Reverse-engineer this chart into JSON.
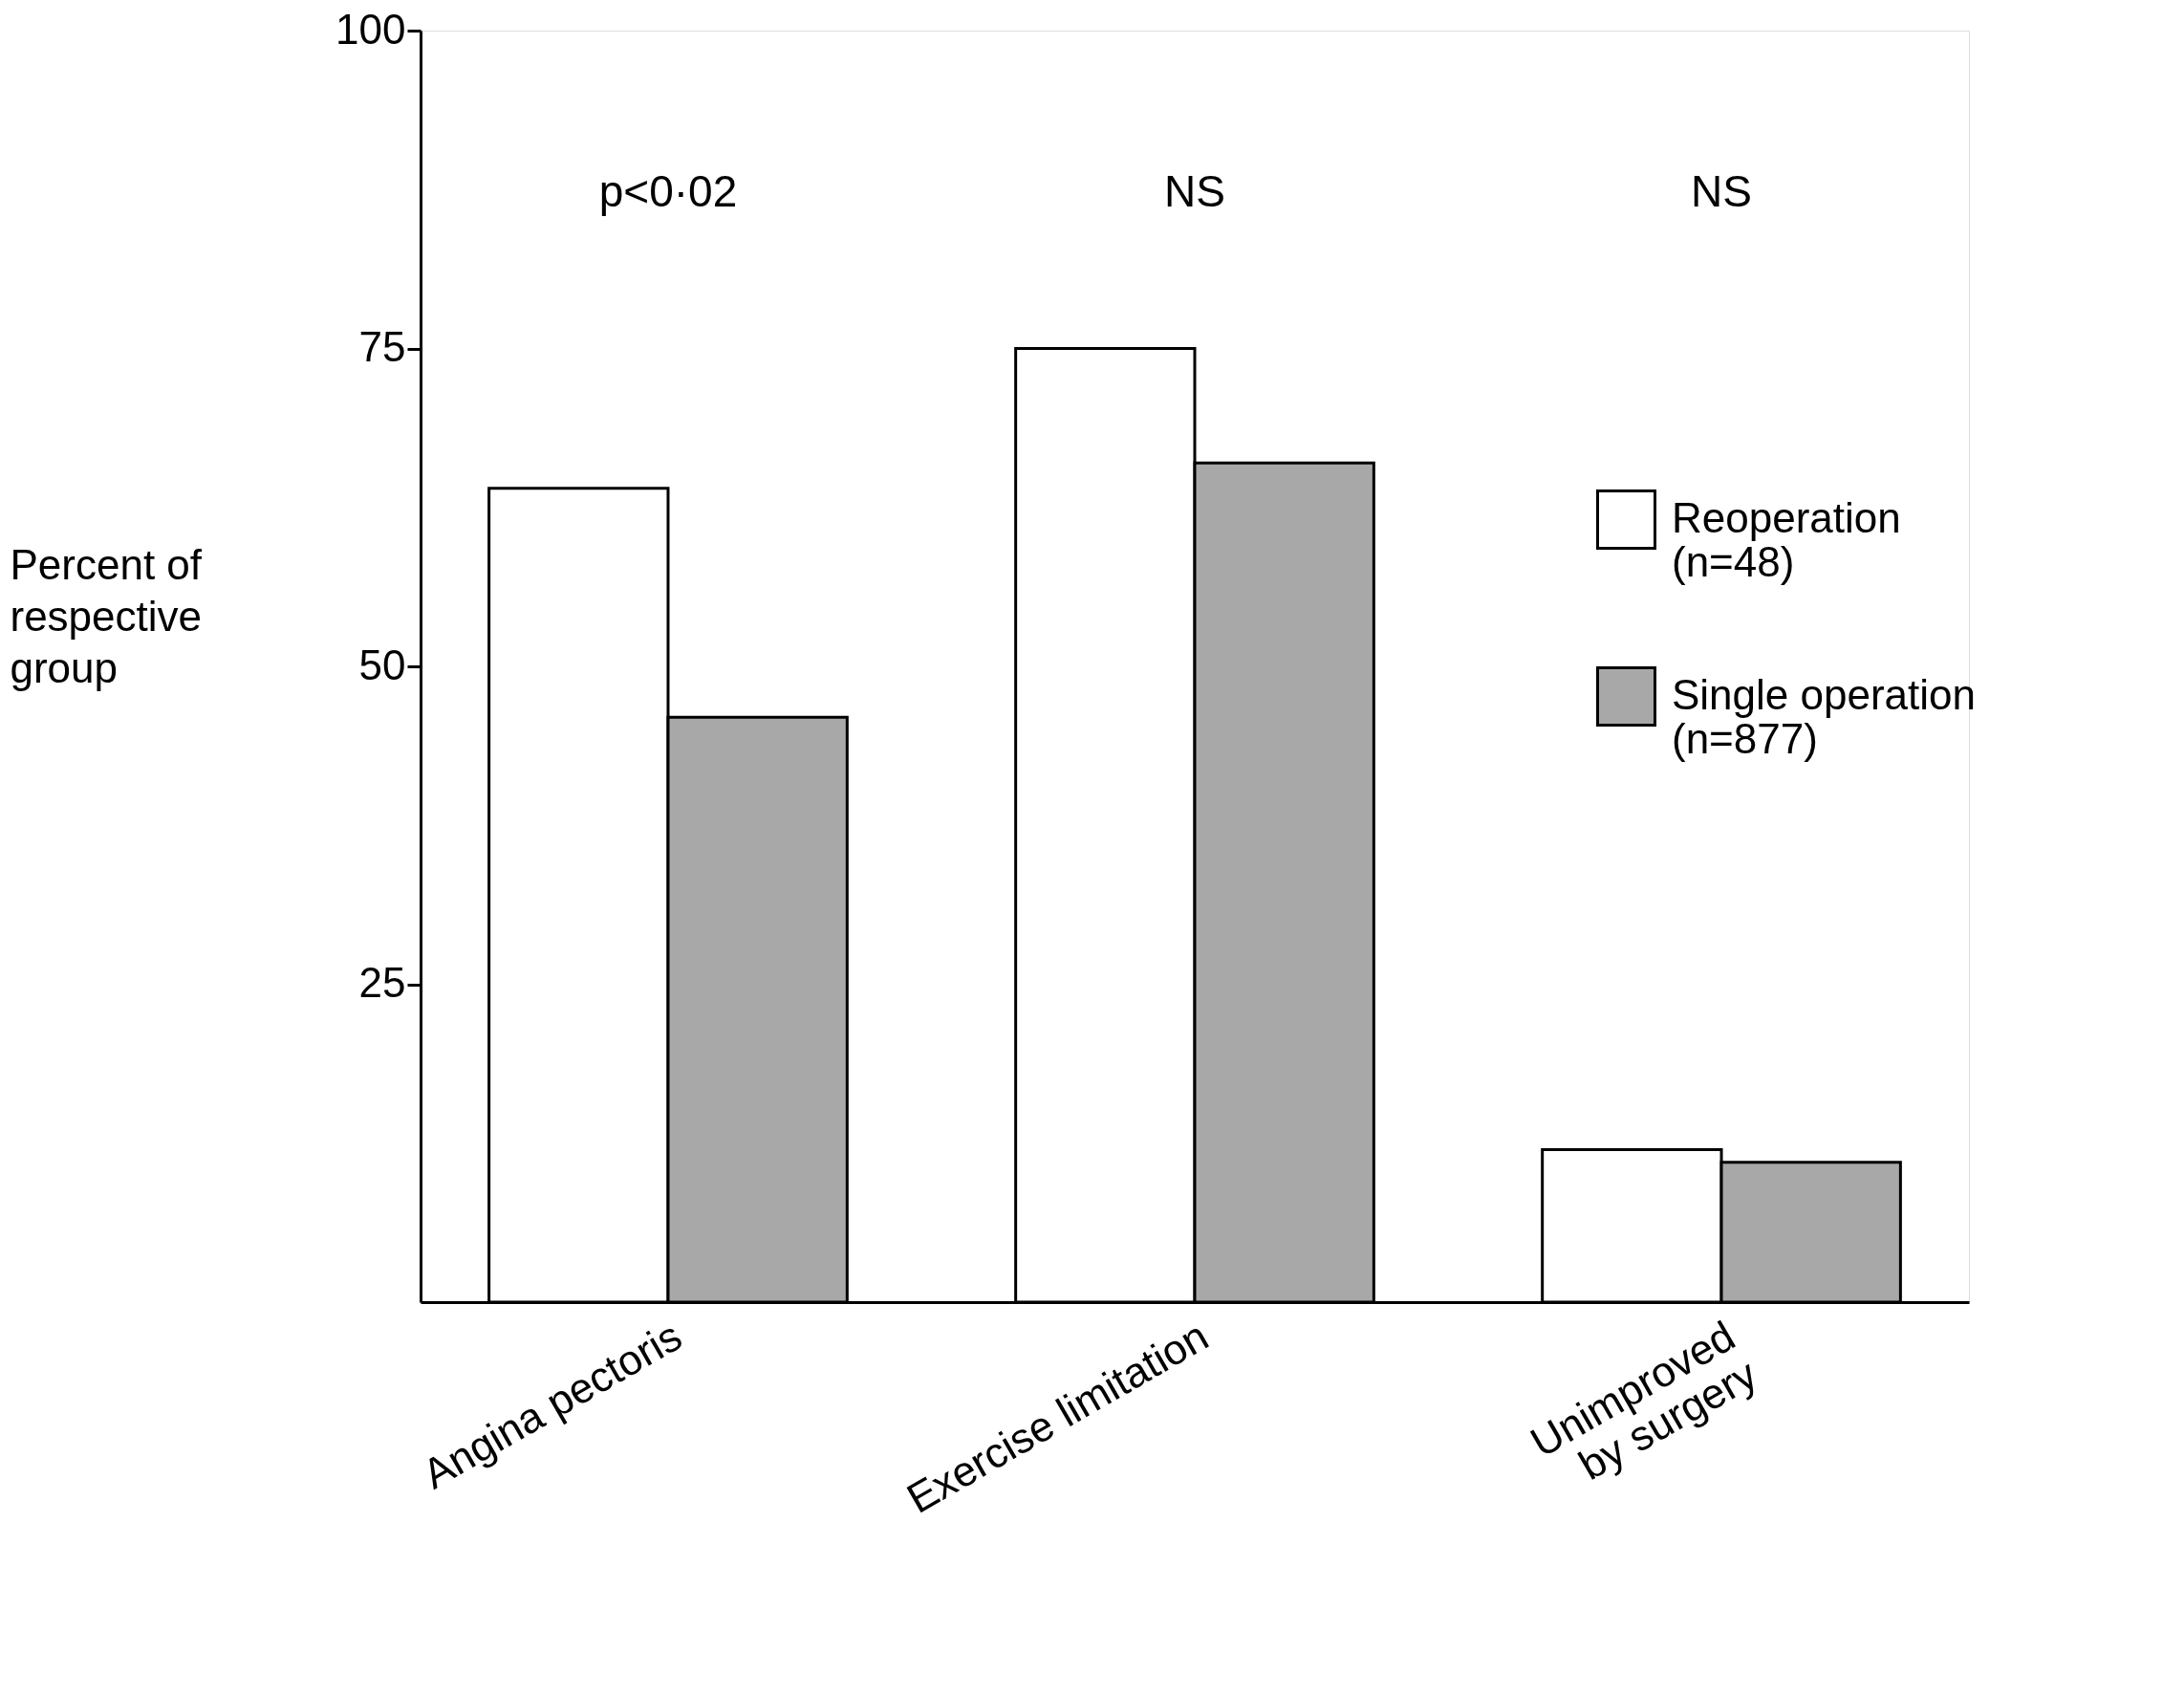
{
  "chart_data": {
    "type": "bar",
    "ylabel": "Percent of\nrespective\ngroup",
    "categories": [
      "Angina pectoris",
      "Exercise limitation",
      "Unimproved\nby surgery"
    ],
    "series": [
      {
        "name": "Reoperation\n(n=48)",
        "color": "#ffffff",
        "values": [
          64,
          75,
          12
        ]
      },
      {
        "name": "Single operation\n(n=877)",
        "color": "#a8a8a8",
        "values": [
          46,
          66,
          11
        ]
      }
    ],
    "annotations": [
      "p<0·02",
      "NS",
      "NS"
    ],
    "ylim": [
      0,
      100
    ],
    "yticks": [
      25,
      50,
      75,
      100
    ],
    "grid": false,
    "legend": "right"
  }
}
